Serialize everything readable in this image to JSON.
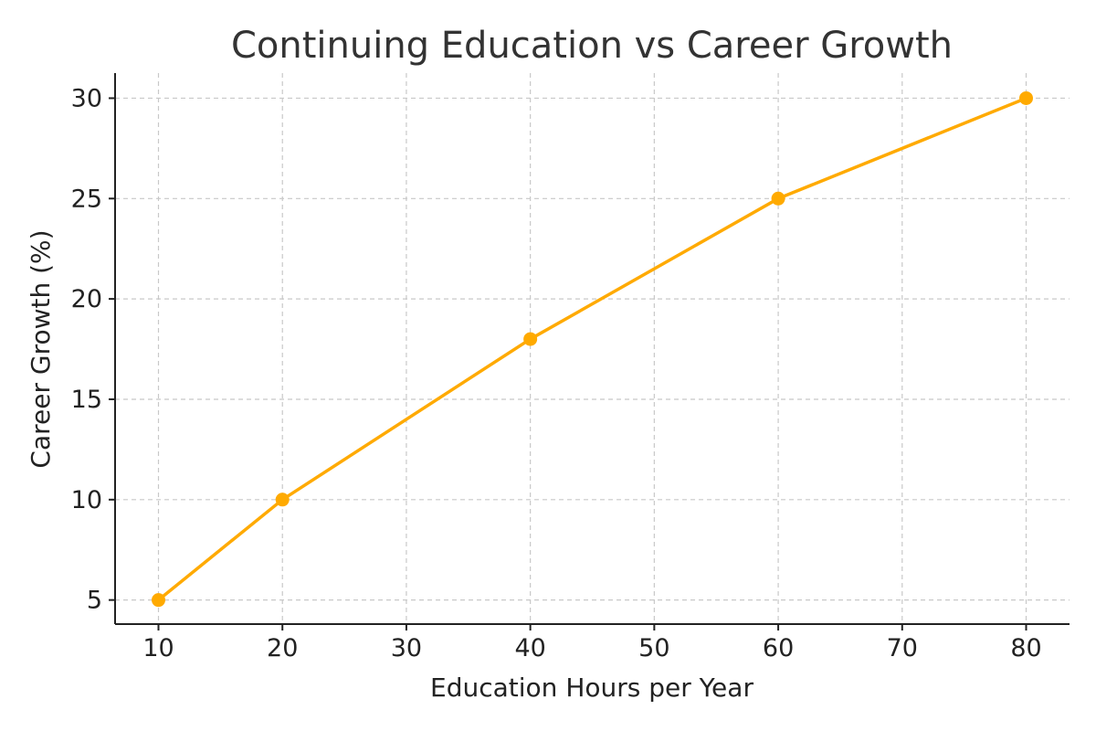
{
  "chart_data": {
    "type": "line",
    "title": "Continuing Education vs Career Growth",
    "xlabel": "Education Hours per Year",
    "ylabel": "Career Growth (%)",
    "x": [
      10,
      20,
      40,
      60,
      80
    ],
    "series": [
      {
        "values": [
          5,
          10,
          18,
          25,
          30
        ],
        "color": "#FFAA00"
      }
    ],
    "xlim": [
      6.5,
      83.5
    ],
    "ylim": [
      3.8,
      31.25
    ],
    "xticks": [
      10,
      20,
      30,
      40,
      50,
      60,
      70,
      80
    ],
    "yticks": [
      5,
      10,
      15,
      20,
      25,
      30
    ],
    "grid": true,
    "legend": "none"
  }
}
